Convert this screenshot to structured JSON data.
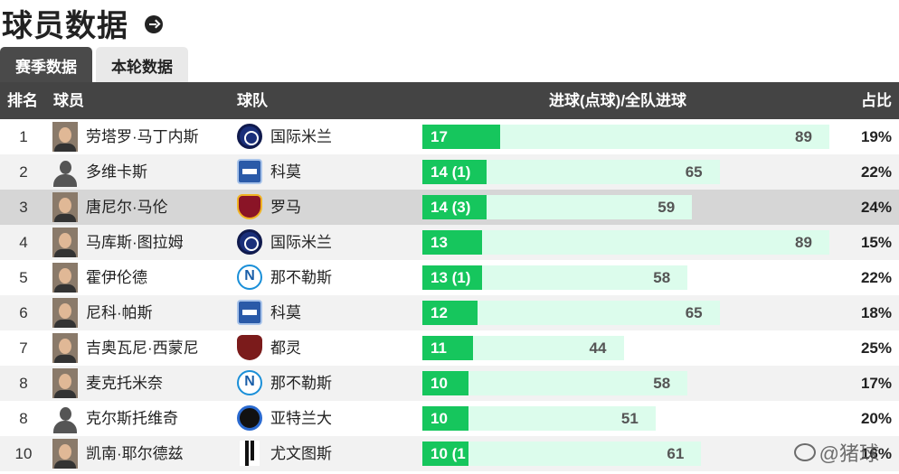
{
  "header": {
    "title": "球员数据"
  },
  "tabs": [
    {
      "label": "赛季数据",
      "active": true
    },
    {
      "label": "本轮数据",
      "active": false
    }
  ],
  "table": {
    "columns": {
      "rank": "排名",
      "player": "球员",
      "team": "球队",
      "goals": "进球(点球)/全队进球",
      "ratio": "占比"
    },
    "rows": [
      {
        "rank": "1",
        "player": "劳塔罗·马丁内斯",
        "team": "国际米兰",
        "team_logo": "inter",
        "goals": "17",
        "goal_value": 17,
        "team_total": "89",
        "ratio": "19%",
        "avatar": "photo"
      },
      {
        "rank": "2",
        "player": "多维卡斯",
        "team": "科莫",
        "team_logo": "como",
        "goals": "14 (1)",
        "goal_value": 14,
        "team_total": "65",
        "ratio": "22%",
        "avatar": "silhouette"
      },
      {
        "rank": "3",
        "player": "唐尼尔·马伦",
        "team": "罗马",
        "team_logo": "roma",
        "goals": "14 (3)",
        "goal_value": 14,
        "team_total": "59",
        "ratio": "24%",
        "avatar": "photo",
        "highlight": true
      },
      {
        "rank": "4",
        "player": "马库斯·图拉姆",
        "team": "国际米兰",
        "team_logo": "inter",
        "goals": "13",
        "goal_value": 13,
        "team_total": "89",
        "ratio": "15%",
        "avatar": "photo"
      },
      {
        "rank": "5",
        "player": "霍伊伦德",
        "team": "那不勒斯",
        "team_logo": "napoli",
        "goals": "13 (1)",
        "goal_value": 13,
        "team_total": "58",
        "ratio": "22%",
        "avatar": "photo"
      },
      {
        "rank": "6",
        "player": "尼科·帕斯",
        "team": "科莫",
        "team_logo": "como",
        "goals": "12",
        "goal_value": 12,
        "team_total": "65",
        "ratio": "18%",
        "avatar": "photo"
      },
      {
        "rank": "7",
        "player": "吉奥瓦尼·西蒙尼",
        "team": "都灵",
        "team_logo": "torino",
        "goals": "11",
        "goal_value": 11,
        "team_total": "44",
        "ratio": "25%",
        "avatar": "photo"
      },
      {
        "rank": "8",
        "player": "麦克托米奈",
        "team": "那不勒斯",
        "team_logo": "napoli",
        "goals": "10",
        "goal_value": 10,
        "team_total": "58",
        "ratio": "17%",
        "avatar": "photo"
      },
      {
        "rank": "8",
        "player": "克尔斯托维奇",
        "team": "亚特兰大",
        "team_logo": "atalanta",
        "goals": "10",
        "goal_value": 10,
        "team_total": "51",
        "ratio": "20%",
        "avatar": "silhouette"
      },
      {
        "rank": "10",
        "player": "凯南·耶尔德兹",
        "team": "尤文图斯",
        "team_logo": "juve",
        "goals": "10 (1",
        "goal_value": 10,
        "team_total": "61",
        "ratio": "16%",
        "avatar": "photo"
      }
    ]
  },
  "watermark": {
    "text": "@猪球"
  }
}
